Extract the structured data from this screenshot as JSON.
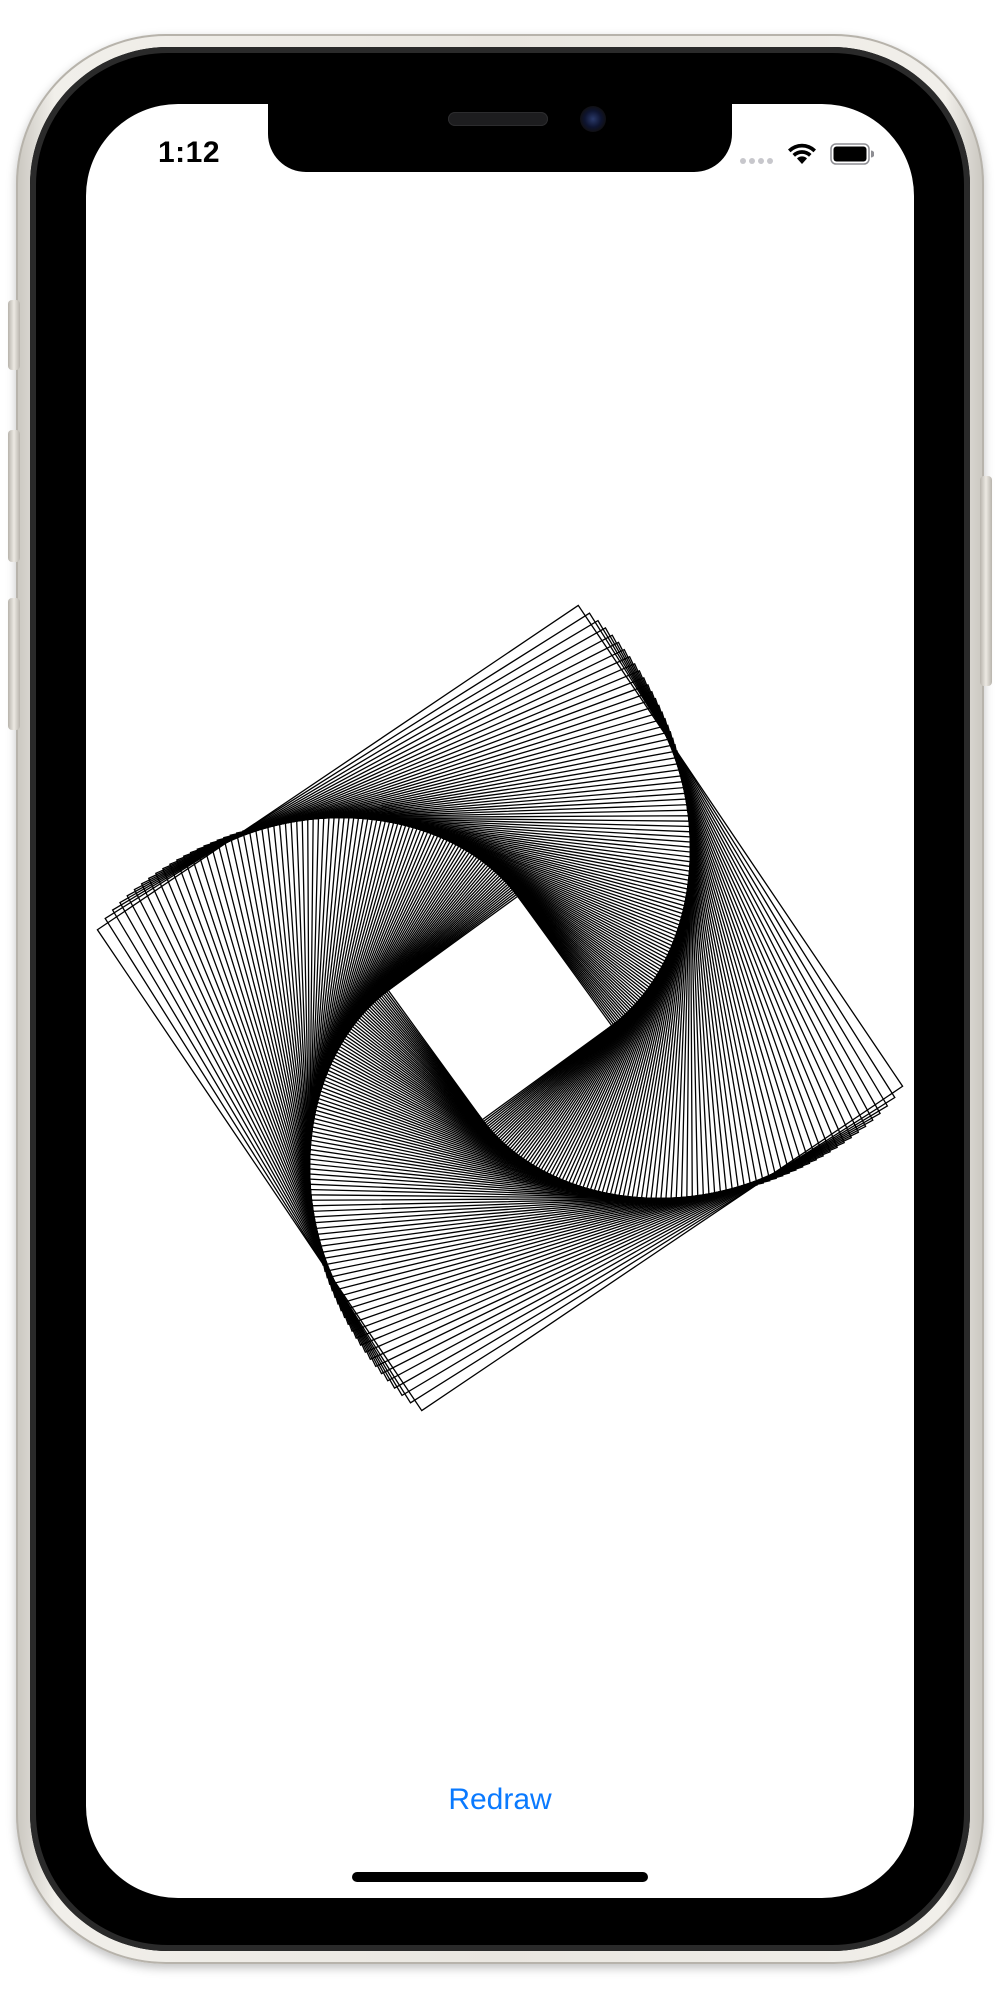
{
  "status_bar": {
    "time": "1:12",
    "signal_icon": "cellular-signal-empty-icon",
    "wifi_icon": "wifi-icon",
    "battery_icon": "battery-full-icon"
  },
  "drawing": {
    "description_icon": "nested-rotated-squares-artwork",
    "stroke_color": "#000000",
    "square_count": 100,
    "twist_total_degrees": 88
  },
  "actions": {
    "redraw_label": "Redraw",
    "accent_color": "#0a7aff"
  }
}
